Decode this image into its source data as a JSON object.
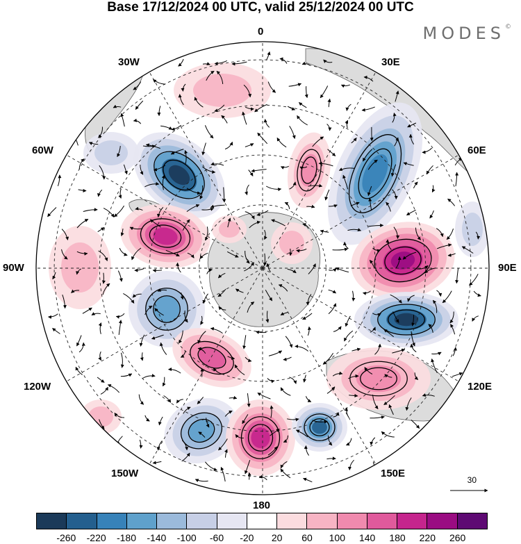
{
  "header": {
    "title": "Base 17/12/2024 00 UTC, valid 25/12/2024 00 UTC",
    "brand": "MODES",
    "brand_mark": "©"
  },
  "map": {
    "projection": "south-polar-stereographic",
    "longitude_labels": {
      "top": "0",
      "bottom": "180",
      "left": "90W",
      "right": "90E",
      "upper_left_1": "30W",
      "upper_left_2": "60W",
      "lower_left_1": "120W",
      "lower_left_2": "150W",
      "upper_right_1": "30E",
      "upper_right_2": "60E",
      "lower_right_1": "120E",
      "lower_right_2": "150E"
    },
    "reference_vector": "30",
    "colors": {
      "land": "#dcdcdc",
      "coast": "#5c5c5c",
      "graticule": "#222222"
    }
  },
  "colorbar": {
    "colors": [
      "#1b3a59",
      "#245f8e",
      "#3782b9",
      "#5fa1cc",
      "#9bbadb",
      "#c7cfe6",
      "#e6e6f2",
      "#ffffff",
      "#fbdcdf",
      "#f7b4c4",
      "#f08aae",
      "#e05a9c",
      "#c5258d",
      "#9a0c82",
      "#5e0a73"
    ],
    "tick_labels": [
      "-260",
      "-220",
      "-180",
      "-140",
      "-100",
      "-60",
      "-20",
      "20",
      "60",
      "100",
      "140",
      "180",
      "220",
      "260"
    ]
  }
}
